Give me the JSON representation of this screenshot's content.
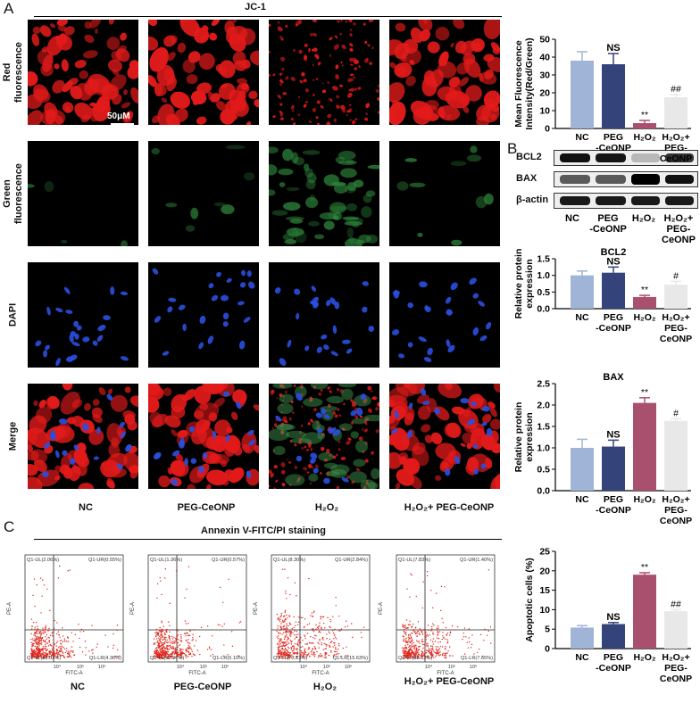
{
  "panel_letters": {
    "a": "A",
    "b": "B",
    "c": "C"
  },
  "jc1_header": "JC-1",
  "row_labels": {
    "red": "Red fluorescence",
    "green": "Green fluorescence",
    "dapi": "DAPI",
    "merge": "Merge"
  },
  "scale_bar": "50μM",
  "groups": [
    "NC",
    "PEG-CeONP",
    "H₂O₂",
    "H₂O₂+ PEG-CeONP"
  ],
  "annexin_header": "Annexin V-FITC/PI staining",
  "wb": {
    "bcl2": "BCL2",
    "bax": "BAX",
    "actin": "β-actin",
    "labels": [
      "NC",
      "PEG -CeONP",
      "H₂O₂",
      "H₂O₂+ PEG- CeONP"
    ]
  },
  "flow": {
    "axis_y": "PE-A",
    "axis_x": "FITC-A",
    "ticks": [
      "10⁴",
      "10⁵",
      "10⁶"
    ],
    "quadrants": [
      {
        "ul": "Q1-UL(2.06%)",
        "ur": "Q1-UR(0.55%)",
        "ll": "Q1-LL(93.02%)",
        "lr": "Q1-LR(4.36%)"
      },
      {
        "ul": "Q1-UL(1.36%)",
        "ur": "Q1-UR(0.57%)",
        "ll": "Q1-LL(92.97%)",
        "lr": "Q1-LR(5.10%)"
      },
      {
        "ul": "Q1-UL(8.30%)",
        "ur": "Q1-UR(2.84%)",
        "ll": "Q1-LL(73.23%)",
        "lr": "Q1-LR(15.63%)"
      },
      {
        "ul": "Q1-UL(7.83%)",
        "ur": "Q1-UR(1.40%)",
        "ll": "Q1-LL(83.12%)",
        "lr": "Q1-LR(7.65%)"
      }
    ]
  },
  "colors": {
    "nc": "#9fb4d6",
    "peg": "#34437a",
    "h2o2": "#a8506e",
    "combo": "#e8e8e8",
    "dot": "#e0261c"
  },
  "chart_data": [
    {
      "type": "bar",
      "ylabel": "Mean Fluorescence Intensity(Red/Green)",
      "categories": [
        "NC",
        "PEG -CeONP",
        "H₂O₂",
        "H₂O₂+ PEG- CeONP"
      ],
      "values": [
        38,
        36,
        3,
        17.5
      ],
      "errors": [
        5,
        6,
        1.5,
        1.5
      ],
      "annotations": [
        "",
        "NS",
        "**",
        "##"
      ],
      "ylim": [
        0,
        50
      ],
      "yticks": [
        0,
        10,
        20,
        30,
        40,
        50
      ]
    },
    {
      "type": "bar",
      "title": "BCL2",
      "ylabel": "Relative protein expression",
      "categories": [
        "NC",
        "PEG -CeONP",
        "H₂O₂",
        "H₂O₂+ PEG- CeONP"
      ],
      "values": [
        1.0,
        1.08,
        0.35,
        0.72
      ],
      "errors": [
        0.13,
        0.17,
        0.05,
        0.1
      ],
      "annotations": [
        "",
        "NS",
        "**",
        "#"
      ],
      "ylim": [
        0,
        1.5
      ],
      "yticks": [
        0.0,
        0.5,
        1.0,
        1.5
      ]
    },
    {
      "type": "bar",
      "title": "BAX",
      "ylabel": "Relative protein expression",
      "categories": [
        "NC",
        "PEG -CeONP",
        "H₂O₂",
        "H₂O₂+ PEG- CeONP"
      ],
      "values": [
        1.0,
        1.03,
        2.05,
        1.63
      ],
      "errors": [
        0.2,
        0.15,
        0.12,
        0.05
      ],
      "annotations": [
        "",
        "NS",
        "**",
        "#"
      ],
      "ylim": [
        0,
        2.5
      ],
      "yticks": [
        0.0,
        0.5,
        1.0,
        1.5,
        2.0,
        2.5
      ]
    },
    {
      "type": "bar",
      "ylabel": "Apoptotic cells (%)",
      "categories": [
        "NC",
        "PEG -CeONP",
        "H₂O₂",
        "H₂O₂+ PEG- CeONP"
      ],
      "values": [
        5.4,
        6.3,
        19,
        9.6
      ],
      "errors": [
        0.5,
        0.4,
        0.5,
        0.4
      ],
      "annotations": [
        "",
        "NS",
        "**",
        "##"
      ],
      "ylim": [
        0,
        25
      ],
      "yticks": [
        0,
        5,
        10,
        15,
        20,
        25
      ]
    }
  ]
}
